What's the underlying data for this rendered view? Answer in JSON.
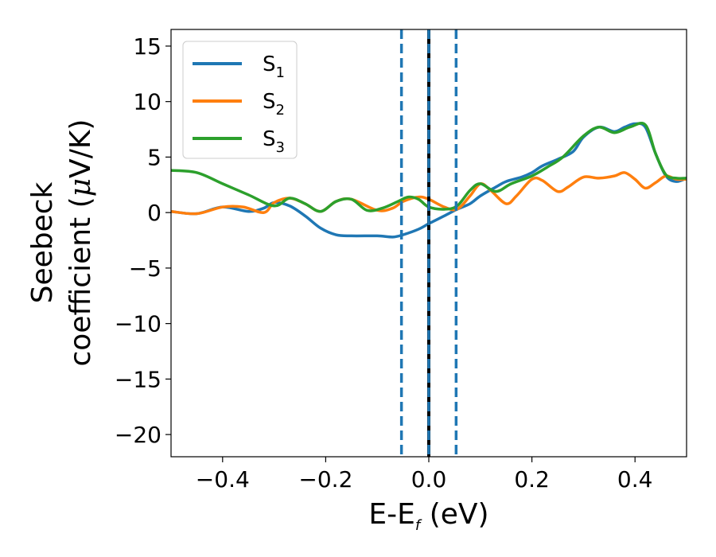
{
  "chart_data": {
    "type": "line",
    "xlabel": {
      "main": "E-E",
      "sub": "f",
      "unit": " (eV)"
    },
    "ylabel": {
      "line1": "Seebeck",
      "line2": "coefficient  (",
      "mu": "μ",
      "unit": "V/K)"
    },
    "xlim": [
      -0.5,
      0.5
    ],
    "ylim": [
      -22,
      16.5
    ],
    "xticks": [
      -0.4,
      -0.2,
      0.0,
      0.2,
      0.4
    ],
    "xtick_labels": [
      "−0.4",
      "−0.2",
      "0.0",
      "0.2",
      "0.4"
    ],
    "yticks": [
      15,
      10,
      5,
      0,
      -5,
      -10,
      -15,
      -20
    ],
    "ytick_labels": [
      "15",
      "10",
      "5",
      "0",
      "−5",
      "−10",
      "−15",
      "−20"
    ],
    "grid": false,
    "legend_position": "top-left",
    "vlines": [
      {
        "x": -0.053,
        "style": "dashed",
        "color": "#1f77b4"
      },
      {
        "x": 0.0,
        "style": "solid",
        "color": "#000000"
      },
      {
        "x": 0.0,
        "style": "dashed",
        "color": "#1f77b4"
      },
      {
        "x": 0.053,
        "style": "dashed",
        "color": "#1f77b4"
      }
    ],
    "series": [
      {
        "name": "S",
        "sub": "1",
        "color": "#1f77b4",
        "x": [
          -0.5,
          -0.45,
          -0.4,
          -0.35,
          -0.32,
          -0.3,
          -0.27,
          -0.24,
          -0.21,
          -0.18,
          -0.15,
          -0.1,
          -0.07,
          -0.05,
          -0.02,
          0.0,
          0.03,
          0.055,
          0.08,
          0.1,
          0.13,
          0.15,
          0.18,
          0.2,
          0.22,
          0.25,
          0.28,
          0.3,
          0.33,
          0.36,
          0.38,
          0.4,
          0.42,
          0.44,
          0.46,
          0.48,
          0.5
        ],
        "y": [
          0.1,
          -0.1,
          0.5,
          0.1,
          0.4,
          0.9,
          0.6,
          -0.3,
          -1.4,
          -2.0,
          -2.1,
          -2.1,
          -2.2,
          -2.0,
          -1.5,
          -1.0,
          -0.3,
          0.3,
          0.8,
          1.5,
          2.3,
          2.8,
          3.2,
          3.6,
          4.2,
          4.8,
          5.5,
          6.8,
          7.7,
          7.3,
          7.7,
          8.0,
          7.7,
          5.3,
          3.3,
          2.8,
          3.1
        ]
      },
      {
        "name": "S",
        "sub": "2",
        "color": "#ff7f0e",
        "x": [
          -0.5,
          -0.45,
          -0.4,
          -0.36,
          -0.32,
          -0.3,
          -0.27,
          -0.24,
          -0.21,
          -0.18,
          -0.15,
          -0.1,
          -0.07,
          -0.05,
          -0.02,
          0.0,
          0.03,
          0.055,
          0.08,
          0.1,
          0.12,
          0.15,
          0.17,
          0.2,
          0.22,
          0.25,
          0.27,
          0.3,
          0.33,
          0.36,
          0.38,
          0.4,
          0.42,
          0.44,
          0.46,
          0.48,
          0.5
        ],
        "y": [
          0.1,
          -0.1,
          0.5,
          0.5,
          0.0,
          0.9,
          1.3,
          0.8,
          0.1,
          1.0,
          1.2,
          0.2,
          0.4,
          1.0,
          1.4,
          1.2,
          0.5,
          0.3,
          1.5,
          2.6,
          2.0,
          0.8,
          1.5,
          3.0,
          2.9,
          1.9,
          2.3,
          3.2,
          3.1,
          3.3,
          3.6,
          3.0,
          2.2,
          2.7,
          3.3,
          3.0,
          3.0
        ]
      },
      {
        "name": "S",
        "sub": "3",
        "color": "#2ca02c",
        "x": [
          -0.5,
          -0.45,
          -0.4,
          -0.35,
          -0.3,
          -0.27,
          -0.24,
          -0.21,
          -0.18,
          -0.15,
          -0.12,
          -0.09,
          -0.06,
          -0.04,
          -0.02,
          0.0,
          0.03,
          0.055,
          0.08,
          0.1,
          0.13,
          0.16,
          0.2,
          0.23,
          0.26,
          0.3,
          0.33,
          0.36,
          0.39,
          0.42,
          0.44,
          0.46,
          0.48,
          0.5
        ],
        "y": [
          3.8,
          3.6,
          2.6,
          1.6,
          0.6,
          1.3,
          0.8,
          0.1,
          1.0,
          1.2,
          0.2,
          0.4,
          1.0,
          1.4,
          1.2,
          0.5,
          0.3,
          0.6,
          2.0,
          2.6,
          1.9,
          2.6,
          3.3,
          4.1,
          5.0,
          6.9,
          7.7,
          7.2,
          7.7,
          7.9,
          5.3,
          3.4,
          3.1,
          3.1
        ]
      }
    ]
  }
}
